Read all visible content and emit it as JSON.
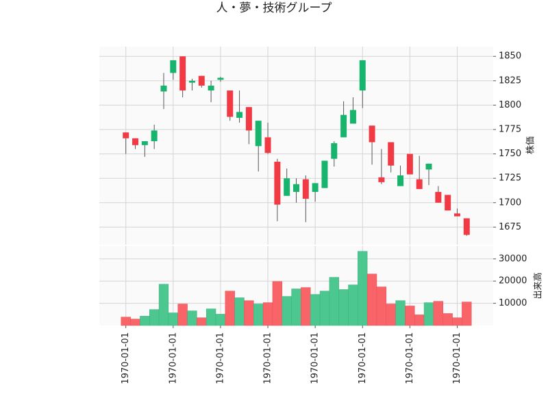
{
  "chart_data": {
    "type": "candlestick",
    "title": "人・夢・技術グループ",
    "ylabel": "株価",
    "volume_label": "出来高",
    "open": [
      1772,
      1766,
      1759,
      1763,
      1814,
      1833,
      1850,
      1823,
      1830,
      1815,
      1826,
      1815,
      1787,
      1798,
      1758,
      1767,
      1742,
      1707,
      1711,
      1724,
      1711,
      1715,
      1745,
      1767,
      1781,
      1815,
      1779,
      1726,
      1762,
      1717,
      1750,
      1724,
      1734,
      1711,
      1708,
      1689,
      1684
    ],
    "high": [
      1772,
      1766,
      1763,
      1780,
      1833,
      1846,
      1850,
      1827,
      1830,
      1825,
      1829,
      1815,
      1815,
      1798,
      1784,
      1782,
      1745,
      1735,
      1725,
      1728,
      1720,
      1743,
      1763,
      1804,
      1808,
      1846,
      1779,
      1755,
      1762,
      1738,
      1750,
      1748,
      1740,
      1717,
      1708,
      1694,
      1684
    ],
    "low": [
      1750,
      1755,
      1747,
      1755,
      1796,
      1826,
      1808,
      1815,
      1818,
      1803,
      1824,
      1784,
      1782,
      1760,
      1732,
      1750,
      1681,
      1707,
      1700,
      1680,
      1701,
      1715,
      1737,
      1767,
      1781,
      1797,
      1739,
      1719,
      1731,
      1717,
      1729,
      1714,
      1718,
      1700,
      1692,
      1686,
      1666
    ],
    "close": [
      1766,
      1759,
      1763,
      1774,
      1820,
      1846,
      1815,
      1825,
      1820,
      1820,
      1828,
      1788,
      1793,
      1774,
      1784,
      1751,
      1698,
      1725,
      1719,
      1704,
      1720,
      1743,
      1761,
      1790,
      1795,
      1846,
      1762,
      1721,
      1738,
      1728,
      1729,
      1714,
      1740,
      1700,
      1692,
      1686,
      1667
    ],
    "volume": [
      3800,
      2900,
      4200,
      7200,
      18600,
      5700,
      9700,
      6600,
      3500,
      7500,
      5100,
      15500,
      12500,
      11200,
      9700,
      10300,
      19800,
      13100,
      16500,
      17100,
      14000,
      15500,
      21700,
      16200,
      18300,
      33400,
      23200,
      17400,
      9700,
      11200,
      8800,
      4800,
      10300,
      10900,
      5400,
      3500,
      10600
    ],
    "xlim": [
      -2.8,
      38.8
    ],
    "xticks": [
      {
        "value": 0,
        "label": "1970-01-01"
      },
      {
        "value": 5,
        "label": "1970-01-01"
      },
      {
        "value": 10,
        "label": "1970-01-01"
      },
      {
        "value": 15,
        "label": "1970-01-01"
      },
      {
        "value": 20,
        "label": "1970-01-01"
      },
      {
        "value": 25,
        "label": "1970-01-01"
      },
      {
        "value": 30,
        "label": "1970-01-01"
      },
      {
        "value": 35,
        "label": "1970-01-01"
      }
    ],
    "ylim": [
      1657,
      1860
    ],
    "yticks": [
      1675,
      1700,
      1725,
      1750,
      1775,
      1800,
      1825,
      1850
    ],
    "volume_ylim": [
      0,
      35800
    ],
    "volume_yticks": [
      10000,
      20000,
      30000
    ],
    "up_color": "#16b46c",
    "down_color": "#f23a45",
    "volume_up_color": "#4cc78f",
    "volume_down_color": "#f96469",
    "grid": true
  }
}
